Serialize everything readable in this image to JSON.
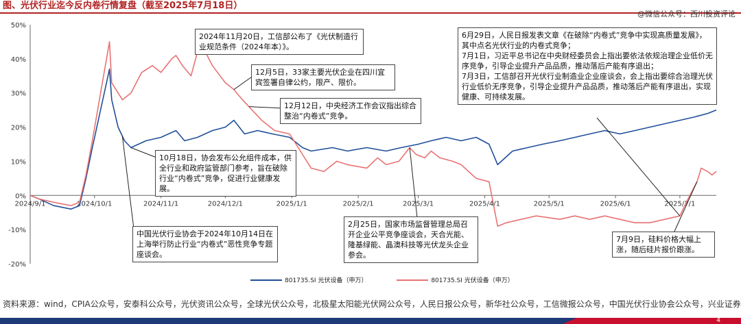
{
  "header": {
    "title": "图、光伏行业迄今反内卷行情复盘（截至2025年7月18日）",
    "watermark": "@微信公众号：西川投资评论"
  },
  "chart_data": {
    "type": "line",
    "title": "图、光伏行业迄今反内卷行情复盘（截至2025年7月18日）",
    "xlabel": "",
    "ylabel": "",
    "ylim": [
      -20,
      50
    ],
    "y_ticks": [
      "50%",
      "40%",
      "30%",
      "20%",
      "10%",
      "0%",
      "-10%",
      "-20%"
    ],
    "y_tick_values": [
      50,
      40,
      30,
      20,
      10,
      0,
      -10,
      -20
    ],
    "x_tick_labels": [
      "2024/9/1",
      "2024/10/1",
      "2024/11/1",
      "2024/12/1",
      "2025/1/1",
      "2025/2/1",
      "2025/3/1",
      "2025/4/1",
      "2025/5/1",
      "2025/6/1",
      "2025/7/1"
    ],
    "x_tick_dates": [
      "2024-09-01",
      "2024-10-01",
      "2024-11-01",
      "2024-12-01",
      "2025-01-01",
      "2025-02-01",
      "2025-03-01",
      "2025-04-01",
      "2025-05-01",
      "2025-06-01",
      "2025-07-01"
    ],
    "x_range": [
      "2024-09-01",
      "2025-07-18"
    ],
    "grid": false,
    "legend_position": "bottom",
    "series": [
      {
        "name": "801735.SI 光伏设备（申万）",
        "color": "#1f4e99",
        "points": [
          [
            "2024-09-01",
            0
          ],
          [
            "2024-09-05",
            -1
          ],
          [
            "2024-09-12",
            -3
          ],
          [
            "2024-09-20",
            -4
          ],
          [
            "2024-09-24",
            -3
          ],
          [
            "2024-09-27",
            5
          ],
          [
            "2024-09-30",
            14
          ],
          [
            "2024-10-08",
            37
          ],
          [
            "2024-10-09",
            28
          ],
          [
            "2024-10-12",
            20
          ],
          [
            "2024-10-15",
            16
          ],
          [
            "2024-10-18",
            14
          ],
          [
            "2024-10-25",
            16
          ],
          [
            "2024-11-01",
            17
          ],
          [
            "2024-11-08",
            19
          ],
          [
            "2024-11-12",
            16
          ],
          [
            "2024-11-18",
            17
          ],
          [
            "2024-11-25",
            19
          ],
          [
            "2024-12-01",
            20
          ],
          [
            "2024-12-05",
            22
          ],
          [
            "2024-12-10",
            18
          ],
          [
            "2024-12-16",
            19
          ],
          [
            "2024-12-23",
            18
          ],
          [
            "2024-12-31",
            17
          ],
          [
            "2025-01-06",
            14
          ],
          [
            "2025-01-10",
            13
          ],
          [
            "2025-01-20",
            14
          ],
          [
            "2025-01-27",
            13
          ],
          [
            "2025-02-05",
            14
          ],
          [
            "2025-02-14",
            13
          ],
          [
            "2025-02-21",
            14
          ],
          [
            "2025-03-01",
            15
          ],
          [
            "2025-03-07",
            16
          ],
          [
            "2025-03-14",
            17
          ],
          [
            "2025-03-21",
            16
          ],
          [
            "2025-03-28",
            17
          ],
          [
            "2025-04-03",
            15
          ],
          [
            "2025-04-07",
            9
          ],
          [
            "2025-04-14",
            13
          ],
          [
            "2025-04-21",
            14
          ],
          [
            "2025-04-28",
            15
          ],
          [
            "2025-05-06",
            16
          ],
          [
            "2025-05-13",
            17
          ],
          [
            "2025-05-20",
            18
          ],
          [
            "2025-05-27",
            19
          ],
          [
            "2025-06-03",
            18
          ],
          [
            "2025-06-10",
            19
          ],
          [
            "2025-06-17",
            20
          ],
          [
            "2025-06-24",
            21
          ],
          [
            "2025-07-01",
            22
          ],
          [
            "2025-07-08",
            23
          ],
          [
            "2025-07-14",
            24
          ],
          [
            "2025-07-18",
            25
          ]
        ]
      },
      {
        "name": "801735.SI 光伏设备（申万）",
        "color": "#e87272",
        "points": [
          [
            "2024-09-01",
            0
          ],
          [
            "2024-09-05",
            -1
          ],
          [
            "2024-09-12",
            -2
          ],
          [
            "2024-09-20",
            -3
          ],
          [
            "2024-09-24",
            -2
          ],
          [
            "2024-09-27",
            6
          ],
          [
            "2024-09-30",
            16
          ],
          [
            "2024-10-03",
            27
          ],
          [
            "2024-10-08",
            45
          ],
          [
            "2024-10-09",
            33
          ],
          [
            "2024-10-14",
            28
          ],
          [
            "2024-10-18",
            30
          ],
          [
            "2024-10-23",
            36
          ],
          [
            "2024-10-28",
            38
          ],
          [
            "2024-11-01",
            36
          ],
          [
            "2024-11-06",
            40
          ],
          [
            "2024-11-08",
            41
          ],
          [
            "2024-11-11",
            38
          ],
          [
            "2024-11-15",
            35
          ],
          [
            "2024-11-18",
            42
          ],
          [
            "2024-11-20",
            44
          ],
          [
            "2024-11-25",
            38
          ],
          [
            "2024-12-01",
            33
          ],
          [
            "2024-12-05",
            31
          ],
          [
            "2024-12-09",
            28
          ],
          [
            "2024-12-12",
            26
          ],
          [
            "2024-12-18",
            22
          ],
          [
            "2024-12-24",
            19
          ],
          [
            "2024-12-31",
            18
          ],
          [
            "2025-01-06",
            12
          ],
          [
            "2025-01-10",
            8
          ],
          [
            "2025-01-16",
            7
          ],
          [
            "2025-01-22",
            10
          ],
          [
            "2025-01-27",
            9
          ],
          [
            "2025-02-05",
            8
          ],
          [
            "2025-02-10",
            11
          ],
          [
            "2025-02-14",
            9
          ],
          [
            "2025-02-20",
            10
          ],
          [
            "2025-02-25",
            14
          ],
          [
            "2025-02-28",
            12
          ],
          [
            "2025-03-04",
            11
          ],
          [
            "2025-03-07",
            13
          ],
          [
            "2025-03-11",
            11
          ],
          [
            "2025-03-17",
            10
          ],
          [
            "2025-03-21",
            9
          ],
          [
            "2025-03-28",
            5
          ],
          [
            "2025-04-03",
            4
          ],
          [
            "2025-04-07",
            -9
          ],
          [
            "2025-04-11",
            -8
          ],
          [
            "2025-04-18",
            -7
          ],
          [
            "2025-04-25",
            -6
          ],
          [
            "2025-05-06",
            -7
          ],
          [
            "2025-05-13",
            -6
          ],
          [
            "2025-05-20",
            -7
          ],
          [
            "2025-05-27",
            -6
          ],
          [
            "2025-06-03",
            -7
          ],
          [
            "2025-06-10",
            -8
          ],
          [
            "2025-06-17",
            -8
          ],
          [
            "2025-06-24",
            -7
          ],
          [
            "2025-07-01",
            -6
          ],
          [
            "2025-07-04",
            -2
          ],
          [
            "2025-07-09",
            4
          ],
          [
            "2025-07-11",
            8
          ],
          [
            "2025-07-14",
            7
          ],
          [
            "2025-07-16",
            6
          ],
          [
            "2025-07-18",
            7
          ]
        ]
      }
    ],
    "annotations": [
      {
        "id": "ann-2024-11-20",
        "date": "2024-11-20",
        "text": "2024年11月20日，工信部公布了《光伏制造行业规范条件（2024年本）》。"
      },
      {
        "id": "ann-2024-12-05",
        "date": "2024-12-05",
        "text": "12月5日，33家主要光伏企业在四川宜宾签署自律公约，限产、限价。"
      },
      {
        "id": "ann-2024-12-12",
        "date": "2024-12-12",
        "text": "12月12日，中央经济工作会议指出综合整治“内卷式”竞争。"
      },
      {
        "id": "ann-2024-10-18",
        "date": "2024-10-18",
        "text": "10月18日，协会发布公允组件成本，供全行业和政府监管部门参考，旨在破除行业“内卷式”竞争，促进行业健康发展。"
      },
      {
        "id": "ann-2024-10-14",
        "date": "2024-10-14",
        "text": "中国光伏行业协会于2024年10月14日在上海举行防止行业“内卷式”恶性竞争专题座谈会。"
      },
      {
        "id": "ann-2025-02-25",
        "date": "2025-02-25",
        "text": "2月25日，国家市场监督管理总局召开企业公平竞争座谈会，天合光能、隆基绿能、晶澳科技等光伏龙头企业参会。"
      },
      {
        "id": "ann-2025-07",
        "date": "2025-06-29",
        "text": "6月29日，人民日报发表文章《在破除“内卷式”竞争中实现高质量发展》，其中点名光伏行业的内卷式竞争；\n7月1日，习近平总书记在中央财经委员会上指出要依法依规治理企业低价无序竞争，引导企业提升产品品质，推动落后产能有序退出；\n7月3日，工信部召开光伏行业制造业企业座谈会，会上指出要综合治理光伏行业低价无序竞争，引导企业提升产品品质，推动落后产能有序退出，实现健康、可持续发展。"
      },
      {
        "id": "ann-2025-07-09",
        "date": "2025-07-09",
        "text": "7月9日，硅料价格大幅上涨，随后硅片报价跟涨。"
      }
    ]
  },
  "legend": {
    "items": [
      {
        "label": "801735.SI 光伏设备（申万）",
        "color": "#1f4e99"
      },
      {
        "label": "801735.SI 光伏设备（申万）",
        "color": "#e87272"
      }
    ]
  },
  "source": {
    "text": "资料来源：wind，CPIA公众号，安泰科公众号，光伏资讯公众号，全球光伏公众号，北极星太阳能光伏网公众号，人民日报公众号，新华社公众号，工信微报公众号，中国光伏行业协会公众号，兴业证券经济与金融研究院整理"
  },
  "footer": {
    "page": "4"
  }
}
